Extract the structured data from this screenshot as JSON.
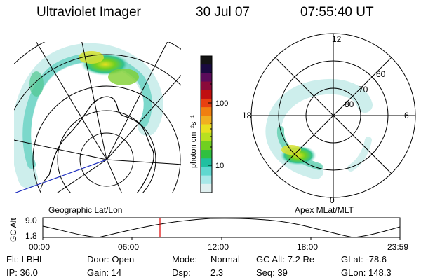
{
  "header": {
    "title": "Ultraviolet Imager",
    "date": "30 Jul 07",
    "time": "07:55:40 UT"
  },
  "geo_panel": {
    "label": "Geographic Lat/Lon"
  },
  "polar_panel": {
    "label": "Apex MLat/MLT",
    "mlt_labels": [
      "12",
      "18",
      "6",
      "0"
    ],
    "mlat_labels": [
      "60",
      "70",
      "80"
    ]
  },
  "colorbar": {
    "unit_label": "photon cm⁻²s⁻¹",
    "ticks": [
      "100",
      "10"
    ],
    "colors": [
      "#141414",
      "#1a0a40",
      "#5a0b5a",
      "#8a0a3a",
      "#c01010",
      "#e84010",
      "#f08010",
      "#f0b020",
      "#e8e020",
      "#b8e020",
      "#70d020",
      "#30c040",
      "#20c0a0",
      "#60d8d0",
      "#a8e8e8",
      "#e0f0f0"
    ]
  },
  "altitude_plot": {
    "ylabel": "GC Alt",
    "yticks": [
      "9.0",
      "1.8"
    ],
    "xticks": [
      "00:00",
      "06:00",
      "12:00",
      "18:00",
      "23:59"
    ],
    "marker_color": "#e00000"
  },
  "info": {
    "row1": {
      "filter": "Flt: LBHL",
      "door": "Door: Open",
      "mode_label": "Mode:",
      "mode_value": "Normal",
      "gc_alt": "GC Alt: 7.2 Re",
      "glat": "GLat: -78.6"
    },
    "row2": {
      "ip": "IP: 36.0",
      "gain": "Gain: 14",
      "dsp_label": "Dsp:",
      "dsp_value": "2.3",
      "seq": "Seq: 39",
      "glon": "GLon: 148.3"
    }
  }
}
